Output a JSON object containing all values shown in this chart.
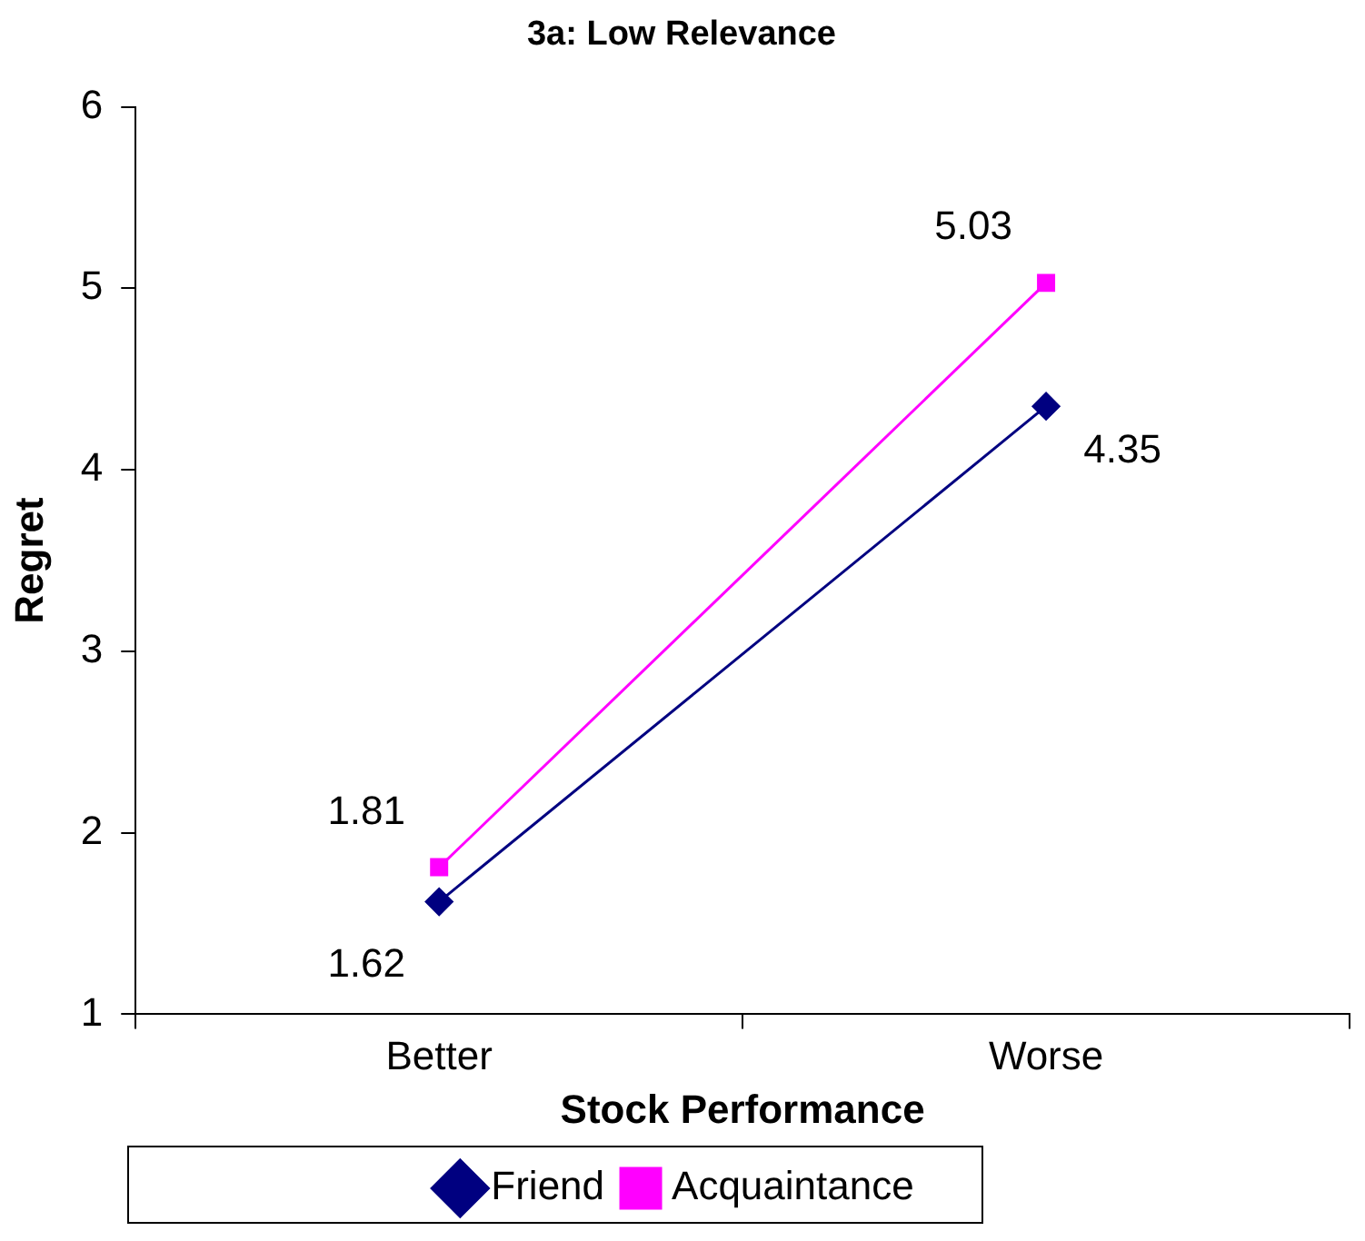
{
  "chart_data": {
    "type": "line",
    "title": "3a: Low Relevance",
    "xlabel": "Stock Performance",
    "ylabel": "Regret",
    "categories": [
      "Better",
      "Worse"
    ],
    "series": [
      {
        "name": "Friend",
        "color": "#000080",
        "values": [
          1.62,
          4.35
        ],
        "marker": "diamond"
      },
      {
        "name": "Acquaintance",
        "color": "#ff00ff",
        "values": [
          1.81,
          5.03
        ],
        "marker": "square"
      }
    ],
    "ylim": [
      1,
      6
    ],
    "yticks": [
      1,
      2,
      3,
      4,
      5,
      6
    ],
    "grid": false,
    "legend": "bottom",
    "data_labels": true
  }
}
